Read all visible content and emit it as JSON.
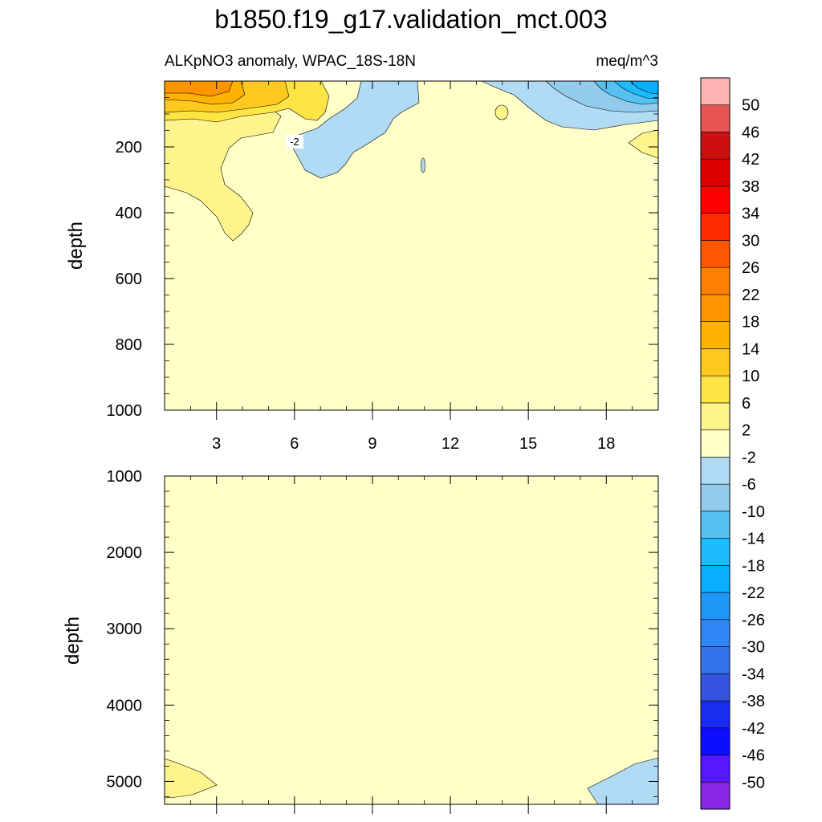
{
  "figure": {
    "title": "b1850.f19_g17.validation_mct.003",
    "left_subtitle": "ALKpNO3 anomaly, WPAC_18S-18N",
    "right_subtitle": "meq/m^3"
  },
  "colors": {
    "background_fill": "#ffffc8",
    "colorbar_fills": [
      "#8826e8",
      "#5417ff",
      "#0d0dff",
      "#1a2cf0",
      "#3555e0",
      "#3572ee",
      "#2f86f5",
      "#1e96f8",
      "#0aaeff",
      "#1cbcff",
      "#55c1f1",
      "#92cbee",
      "#b1dbf4",
      "#ffffc8",
      "#fff48c",
      "#ffe543",
      "#ffc91d",
      "#ffb200",
      "#ff9300",
      "#ff7f00",
      "#ff5600",
      "#ff2a00",
      "#ff0000",
      "#dd0000",
      "#cc1010",
      "#e85454",
      "#ffb2b2"
    ]
  },
  "chart_data": [
    {
      "type": "contour",
      "panel": "upper",
      "xlabel": "",
      "ylabel": "depth",
      "xlim": [
        1,
        20
      ],
      "ylim": [
        1000,
        0
      ],
      "x_ticks": [
        3,
        6,
        9,
        12,
        15,
        18
      ],
      "y_ticks": [
        200,
        400,
        600,
        800,
        1000
      ],
      "contour_levels": [
        -50,
        -46,
        -42,
        -38,
        -34,
        -30,
        -26,
        -22,
        -18,
        -14,
        -10,
        -6,
        -2,
        2,
        6,
        10,
        14,
        18,
        22,
        26,
        30,
        34,
        38,
        42,
        46,
        50
      ],
      "contour_labels": [
        {
          "text": "-2",
          "x": 6.5,
          "y": 190
        }
      ],
      "regions": [
        {
          "sign": "positive",
          "value_range": [
            2,
            6
          ],
          "x_range": [
            1,
            5.3
          ],
          "y_range": [
            0,
            470
          ]
        },
        {
          "sign": "positive",
          "value_range": [
            6,
            10
          ],
          "x_range": [
            1,
            7.5
          ],
          "y_range": [
            0,
            115
          ]
        },
        {
          "sign": "positive",
          "value_range": [
            14,
            22
          ],
          "x_range": [
            1,
            4.3
          ],
          "y_range": [
            0,
            45
          ]
        },
        {
          "sign": "negative",
          "value_range": [
            -6,
            -2
          ],
          "x_range": [
            7,
            11
          ],
          "y_range": [
            0,
            245
          ]
        },
        {
          "sign": "positive",
          "value_range": [
            2,
            6
          ],
          "x_range": [
            19.2,
            20
          ],
          "y_range": [
            145,
            235
          ]
        },
        {
          "sign": "negative",
          "value_range": [
            -22,
            -2
          ],
          "x_range": [
            13.8,
            20
          ],
          "y_range": [
            0,
            150
          ]
        }
      ]
    },
    {
      "type": "contour",
      "panel": "lower",
      "xlabel": "",
      "ylabel": "depth",
      "xlim": [
        1,
        20
      ],
      "ylim": [
        5300,
        1000
      ],
      "x_ticks": [
        3,
        6,
        9,
        12,
        15,
        18
      ],
      "y_ticks": [
        1000,
        2000,
        3000,
        4000,
        5000
      ],
      "regions": [
        {
          "sign": "positive",
          "value_range": [
            2,
            6
          ],
          "x_range": [
            1,
            3
          ],
          "y_range": [
            4750,
            5300
          ]
        },
        {
          "sign": "negative",
          "value_range": [
            -6,
            -2
          ],
          "x_range": [
            17.8,
            20
          ],
          "y_range": [
            4750,
            5300
          ]
        }
      ]
    },
    {
      "type": "colorbar",
      "labels": [
        "50",
        "46",
        "42",
        "38",
        "34",
        "30",
        "26",
        "22",
        "18",
        "14",
        "10",
        "6",
        "2",
        "-2",
        "-6",
        "-10",
        "-14",
        "-18",
        "-22",
        "-26",
        "-30",
        "-34",
        "-38",
        "-42",
        "-46",
        "-50"
      ]
    }
  ]
}
